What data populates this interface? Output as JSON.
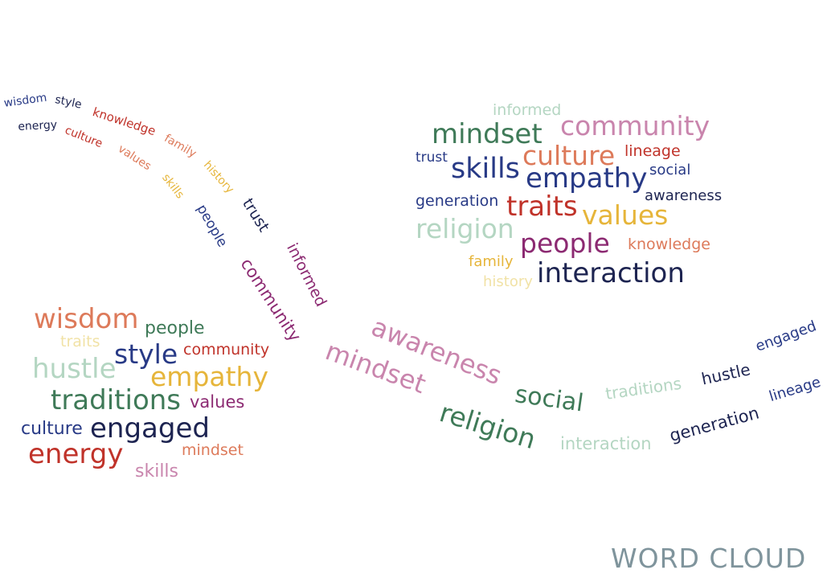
{
  "title": "WORD CLOUD",
  "palette": {
    "navy": "#1d2451",
    "darkblue": "#283a86",
    "red": "#c0332a",
    "salmon": "#dd7a5a",
    "gold": "#e6b53a",
    "paleyellow": "#f1e2a6",
    "green": "#3f7a58",
    "mint": "#b4d6c2",
    "pink": "#c985ad",
    "purple": "#8c2a72"
  },
  "flow_words": [
    {
      "text": "wisdom",
      "color": "darkblue"
    },
    {
      "text": "style",
      "color": "navy"
    },
    {
      "text": "knowledge",
      "color": "red"
    },
    {
      "text": "energy",
      "color": "navy"
    },
    {
      "text": "culture",
      "color": "red"
    },
    {
      "text": "family",
      "color": "salmon"
    },
    {
      "text": "values",
      "color": "salmon"
    },
    {
      "text": "history",
      "color": "gold"
    },
    {
      "text": "skills",
      "color": "gold"
    },
    {
      "text": "trust",
      "color": "navy"
    },
    {
      "text": "people",
      "color": "darkblue"
    },
    {
      "text": "informed",
      "color": "purple"
    },
    {
      "text": "community",
      "color": "purple"
    },
    {
      "text": "awareness",
      "color": "pink"
    },
    {
      "text": "mindset",
      "color": "pink"
    },
    {
      "text": "social",
      "color": "green"
    },
    {
      "text": "religion",
      "color": "green"
    },
    {
      "text": "traditions",
      "color": "mint"
    },
    {
      "text": "interaction",
      "color": "mint"
    },
    {
      "text": "hustle",
      "color": "navy"
    },
    {
      "text": "engaged",
      "color": "darkblue"
    },
    {
      "text": "generation",
      "color": "navy"
    },
    {
      "text": "lineage",
      "color": "darkblue"
    }
  ],
  "right_cloud": [
    {
      "text": "informed",
      "color": "mint"
    },
    {
      "text": "mindset",
      "color": "green"
    },
    {
      "text": "community",
      "color": "pink"
    },
    {
      "text": "trust",
      "color": "darkblue"
    },
    {
      "text": "skills",
      "color": "darkblue"
    },
    {
      "text": "culture",
      "color": "salmon"
    },
    {
      "text": "lineage",
      "color": "red"
    },
    {
      "text": "empathy",
      "color": "darkblue"
    },
    {
      "text": "social",
      "color": "darkblue"
    },
    {
      "text": "generation",
      "color": "darkblue"
    },
    {
      "text": "awareness",
      "color": "navy"
    },
    {
      "text": "traits",
      "color": "red"
    },
    {
      "text": "values",
      "color": "gold"
    },
    {
      "text": "religion",
      "color": "mint"
    },
    {
      "text": "people",
      "color": "purple"
    },
    {
      "text": "knowledge",
      "color": "salmon"
    },
    {
      "text": "family",
      "color": "gold"
    },
    {
      "text": "history",
      "color": "paleyellow"
    },
    {
      "text": "interaction",
      "color": "navy"
    }
  ],
  "left_cloud": [
    {
      "text": "wisdom",
      "color": "salmon"
    },
    {
      "text": "people",
      "color": "green"
    },
    {
      "text": "traits",
      "color": "paleyellow"
    },
    {
      "text": "style",
      "color": "darkblue"
    },
    {
      "text": "community",
      "color": "red"
    },
    {
      "text": "hustle",
      "color": "mint"
    },
    {
      "text": "empathy",
      "color": "gold"
    },
    {
      "text": "traditions",
      "color": "green"
    },
    {
      "text": "values",
      "color": "purple"
    },
    {
      "text": "culture",
      "color": "darkblue"
    },
    {
      "text": "engaged",
      "color": "navy"
    },
    {
      "text": "energy",
      "color": "red"
    },
    {
      "text": "mindset",
      "color": "salmon"
    },
    {
      "text": "skills",
      "color": "pink"
    }
  ]
}
